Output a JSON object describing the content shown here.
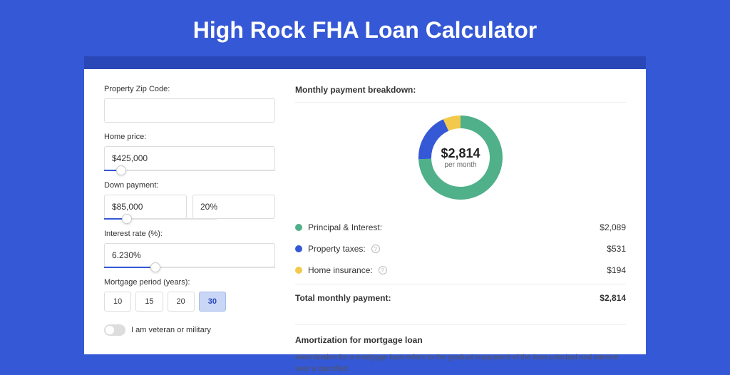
{
  "page": {
    "title": "High Rock FHA Loan Calculator",
    "colors": {
      "bg": "#3558d6",
      "card": "#ffffff",
      "bar": "#2a47b8",
      "text": "#333333",
      "border": "#dddddd"
    }
  },
  "form": {
    "zip": {
      "label": "Property Zip Code:",
      "value": ""
    },
    "homePrice": {
      "label": "Home price:",
      "value": "$425,000",
      "slider_pct": 10
    },
    "downPayment": {
      "label": "Down payment:",
      "amount": "$85,000",
      "percent": "20%",
      "slider_pct": 20
    },
    "interest": {
      "label": "Interest rate (%):",
      "value": "6.230%",
      "slider_pct": 30
    },
    "period": {
      "label": "Mortgage period (years):",
      "options": [
        "10",
        "15",
        "20",
        "30"
      ],
      "active": "30"
    },
    "veteran": {
      "label": "I am veteran or military",
      "on": false
    }
  },
  "breakdown": {
    "title": "Monthly payment breakdown:",
    "donut": {
      "amount": "$2,814",
      "sub": "per month",
      "segments": [
        {
          "name": "principal-interest",
          "value": 2089,
          "color": "#4fb08a"
        },
        {
          "name": "property-taxes",
          "value": 531,
          "color": "#3558d6"
        },
        {
          "name": "home-insurance",
          "value": 194,
          "color": "#f2c94c"
        }
      ],
      "stroke_width": 18,
      "size": 130
    },
    "items": [
      {
        "label": "Principal & Interest:",
        "amount": "$2,089",
        "color": "#4fb08a",
        "info": false
      },
      {
        "label": "Property taxes:",
        "amount": "$531",
        "color": "#3558d6",
        "info": true
      },
      {
        "label": "Home insurance:",
        "amount": "$194",
        "color": "#f2c94c",
        "info": true
      }
    ],
    "total": {
      "label": "Total monthly payment:",
      "amount": "$2,814"
    }
  },
  "amortization": {
    "title": "Amortization for mortgage loan",
    "text": "Amortization for a mortgage loan refers to the gradual repayment of the loan principal and interest over a specified"
  }
}
